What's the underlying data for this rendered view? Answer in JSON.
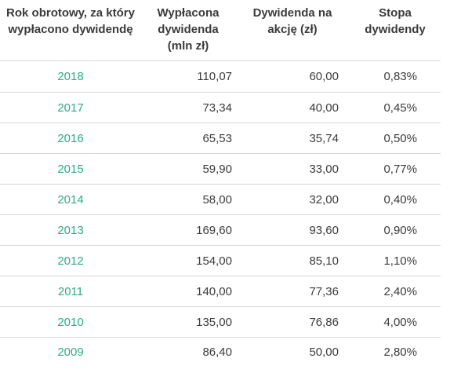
{
  "table": {
    "headers": [
      "Rok obrotowy, za który wypłacono dywidendę",
      "Wypłacona dywidenda (mln zł)",
      "Dywidenda na akcję (zł)",
      "Stopa dywidendy"
    ],
    "rows": [
      {
        "year": "2018",
        "paid": "110,07",
        "per_share": "60,00",
        "yield": "0,83%"
      },
      {
        "year": "2017",
        "paid": "73,34",
        "per_share": "40,00",
        "yield": "0,45%"
      },
      {
        "year": "2016",
        "paid": "65,53",
        "per_share": "35,74",
        "yield": "0,50%"
      },
      {
        "year": "2015",
        "paid": "59,90",
        "per_share": "33,00",
        "yield": "0,77%"
      },
      {
        "year": "2014",
        "paid": "58,00",
        "per_share": "32,00",
        "yield": "0,40%"
      },
      {
        "year": "2013",
        "paid": "169,60",
        "per_share": "93,60",
        "yield": "0,90%"
      },
      {
        "year": "2012",
        "paid": "154,00",
        "per_share": "85,10",
        "yield": "1,10%"
      },
      {
        "year": "2011",
        "paid": "140,00",
        "per_share": "77,36",
        "yield": "2,40%"
      },
      {
        "year": "2010",
        "paid": "135,00",
        "per_share": "76,86",
        "yield": "4,00%"
      },
      {
        "year": "2009",
        "paid": "86,40",
        "per_share": "50,00",
        "yield": "2,80%"
      }
    ]
  },
  "colors": {
    "year_link": "#2eab85",
    "text": "#3b3b3b",
    "divider": "#d8d8d8"
  }
}
